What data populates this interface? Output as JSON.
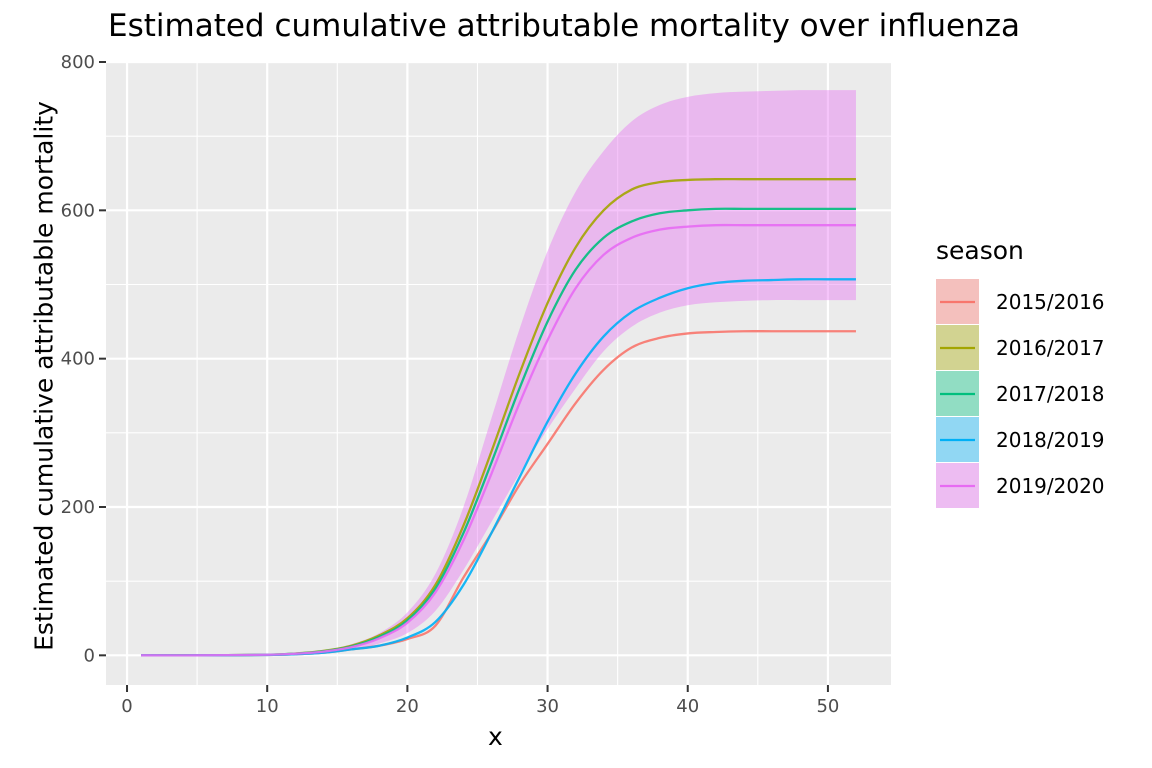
{
  "chart_data": {
    "type": "line",
    "title": "Estimated cumulative attributable mortality over influenza",
    "xlabel": "x",
    "ylabel": "Estimated cumulative attributable mortality",
    "xlim": [
      -1.5,
      54.5
    ],
    "ylim": [
      -40,
      800
    ],
    "xticks": [
      0,
      10,
      20,
      30,
      40,
      50
    ],
    "yticks": [
      0,
      200,
      400,
      600,
      800
    ],
    "grid": true,
    "legend": {
      "title": "season",
      "placement": "right"
    },
    "x": [
      1,
      5,
      10,
      12,
      14,
      16,
      18,
      20,
      22,
      24,
      26,
      28,
      30,
      32,
      34,
      36,
      38,
      40,
      42,
      44,
      46,
      48,
      50,
      52
    ],
    "series": [
      {
        "name": "2015/2016",
        "color": "#F8766D",
        "fill": "#F8766D",
        "values": [
          0,
          0,
          0.5,
          1.5,
          3.5,
          8,
          13,
          22,
          40,
          105,
          165,
          230,
          285,
          340,
          385,
          415,
          428,
          434,
          436,
          437,
          437,
          437,
          437,
          437
        ]
      },
      {
        "name": "2016/2017",
        "color": "#A3A500",
        "fill": "#A3A500",
        "values": [
          0,
          0,
          0.8,
          2.5,
          6,
          13,
          27,
          50,
          95,
          175,
          275,
          380,
          475,
          550,
          600,
          628,
          638,
          641,
          642,
          642,
          642,
          642,
          642,
          642
        ]
      },
      {
        "name": "2017/2018",
        "color": "#00BF7D",
        "fill": "#00BF7D",
        "values": [
          0,
          0,
          0.8,
          2.3,
          5.5,
          12,
          25,
          47,
          90,
          165,
          260,
          360,
          450,
          520,
          563,
          585,
          596,
          600,
          602,
          602,
          602,
          602,
          602,
          602
        ]
      },
      {
        "name": "2018/2019",
        "color": "#00B0F6",
        "fill": "#00B0F6",
        "values": [
          0,
          0,
          0.5,
          1.5,
          3.5,
          8,
          13,
          24,
          45,
          95,
          165,
          240,
          315,
          380,
          430,
          463,
          482,
          495,
          502,
          505,
          506,
          507,
          507,
          507
        ]
      },
      {
        "name": "2019/2020",
        "color": "#E76BF3",
        "fill": "#E76BF3",
        "values": [
          0,
          0,
          0.8,
          2.2,
          5,
          11,
          23,
          44,
          85,
          155,
          245,
          340,
          425,
          495,
          540,
          563,
          574,
          578,
          580,
          580,
          580,
          580,
          580,
          580
        ]
      }
    ],
    "ribbon": {
      "series": "2019/2020",
      "color": "#E76BF3",
      "upper": [
        0,
        0,
        1,
        3,
        7,
        15,
        30,
        58,
        110,
        200,
        320,
        440,
        545,
        625,
        680,
        720,
        742,
        753,
        758,
        760,
        761,
        762,
        762,
        762
      ],
      "lower": [
        0,
        0,
        0.5,
        1.5,
        3,
        7,
        16,
        30,
        60,
        115,
        180,
        245,
        305,
        360,
        410,
        443,
        462,
        472,
        476,
        478,
        479,
        479,
        479,
        479
      ]
    }
  }
}
